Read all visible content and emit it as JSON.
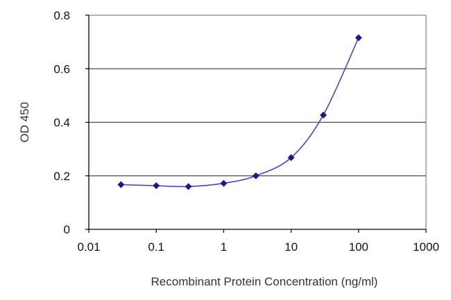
{
  "chart_data": {
    "type": "line",
    "xscale": "log",
    "xlabel": "Recombinant Protein Concentration (ng/ml)",
    "ylabel": "OD 450",
    "xlim": [
      0.01,
      1000
    ],
    "ylim": [
      0,
      0.8
    ],
    "x_ticks": [
      "0.01",
      "0.1",
      "1",
      "10",
      "100",
      "1000"
    ],
    "y_ticks": [
      "0",
      "0.2",
      "0.4",
      "0.6",
      "0.8"
    ],
    "grid": "horizontal",
    "legend": "none",
    "series": [
      {
        "x": [
          0.03,
          0.1,
          0.3,
          1,
          3,
          10,
          30,
          100
        ],
        "y": [
          0.167,
          0.163,
          0.16,
          0.172,
          0.2,
          0.268,
          0.427,
          0.716
        ],
        "color": "#1a1a8c"
      }
    ]
  }
}
